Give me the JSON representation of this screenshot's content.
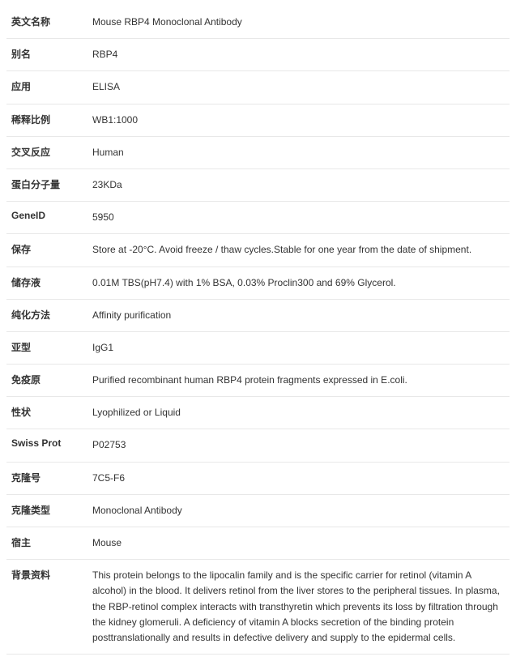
{
  "rows": [
    {
      "label": "英文名称",
      "value": "Mouse RBP4 Monoclonal Antibody"
    },
    {
      "label": "别名",
      "value": "RBP4"
    },
    {
      "label": "应用",
      "value": "ELISA"
    },
    {
      "label": "稀释比例",
      "value": "WB1:1000"
    },
    {
      "label": "交叉反应",
      "value": "Human"
    },
    {
      "label": "蛋白分子量",
      "value": "23KDa"
    },
    {
      "label": "GeneID",
      "value": "5950"
    },
    {
      "label": "保存",
      "value": "Store at -20°C. Avoid freeze / thaw cycles.Stable for one year from the date of shipment."
    },
    {
      "label": "储存液",
      "value": "0.01M TBS(pH7.4) with 1% BSA, 0.03% Proclin300 and 69% Glycerol."
    },
    {
      "label": "纯化方法",
      "value": "Affinity purification"
    },
    {
      "label": "亚型",
      "value": "IgG1"
    },
    {
      "label": "免疫原",
      "value": "Purified recombinant human RBP4 protein fragments expressed in E.coli."
    },
    {
      "label": "性状",
      "value": "Lyophilized or Liquid"
    },
    {
      "label": "Swiss Prot",
      "value": "P02753"
    },
    {
      "label": "克隆号",
      "value": "7C5-F6"
    },
    {
      "label": "克隆类型",
      "value": "Monoclonal Antibody"
    },
    {
      "label": "宿主",
      "value": "Mouse"
    },
    {
      "label": "背景资料",
      "value": "This protein belongs to the lipocalin family and is the specific carrier for retinol (vitamin A alcohol) in the blood. It delivers retinol from the liver stores to the peripheral tissues. In plasma, the RBP-retinol complex interacts with transthyretin which prevents its loss by filtration through the kidney glomeruli. A deficiency of vitamin A blocks secretion of the binding protein posttranslationally and results in defective delivery and supply to the epidermal cells."
    }
  ]
}
